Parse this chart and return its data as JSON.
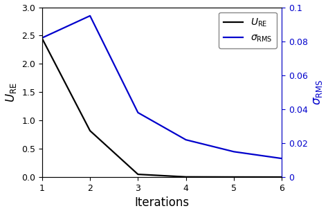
{
  "iterations": [
    1,
    2,
    3,
    4,
    5,
    6
  ],
  "u_re": [
    2.45,
    0.82,
    0.05,
    0.005,
    0.003,
    0.002
  ],
  "sigma_rms": [
    0.082,
    0.095,
    0.038,
    0.022,
    0.015,
    0.011
  ],
  "u_re_color": "#000000",
  "sigma_rms_color": "#0000cc",
  "xlabel": "Iterations",
  "ylabel_left": "$U_{\\mathrm{RE}}$",
  "ylabel_right": "$\\sigma_{\\mathrm{RMS}}$",
  "legend_u_re": "$U_{\\mathrm{RE}}$",
  "legend_sigma": "$\\sigma_{\\mathrm{RMS}}$",
  "xlim": [
    1,
    6
  ],
  "ylim_left": [
    0,
    3
  ],
  "ylim_right": [
    0,
    0.1
  ],
  "yticks_left": [
    0,
    0.5,
    1.0,
    1.5,
    2.0,
    2.5,
    3.0
  ],
  "yticks_right": [
    0,
    0.02,
    0.04,
    0.06,
    0.08,
    0.1
  ],
  "xticks": [
    1,
    2,
    3,
    4,
    5,
    6
  ],
  "linewidth": 1.6,
  "background_color": "#ffffff",
  "legend_fontsize": 10,
  "axis_label_fontsize": 12,
  "tick_fontsize": 9
}
